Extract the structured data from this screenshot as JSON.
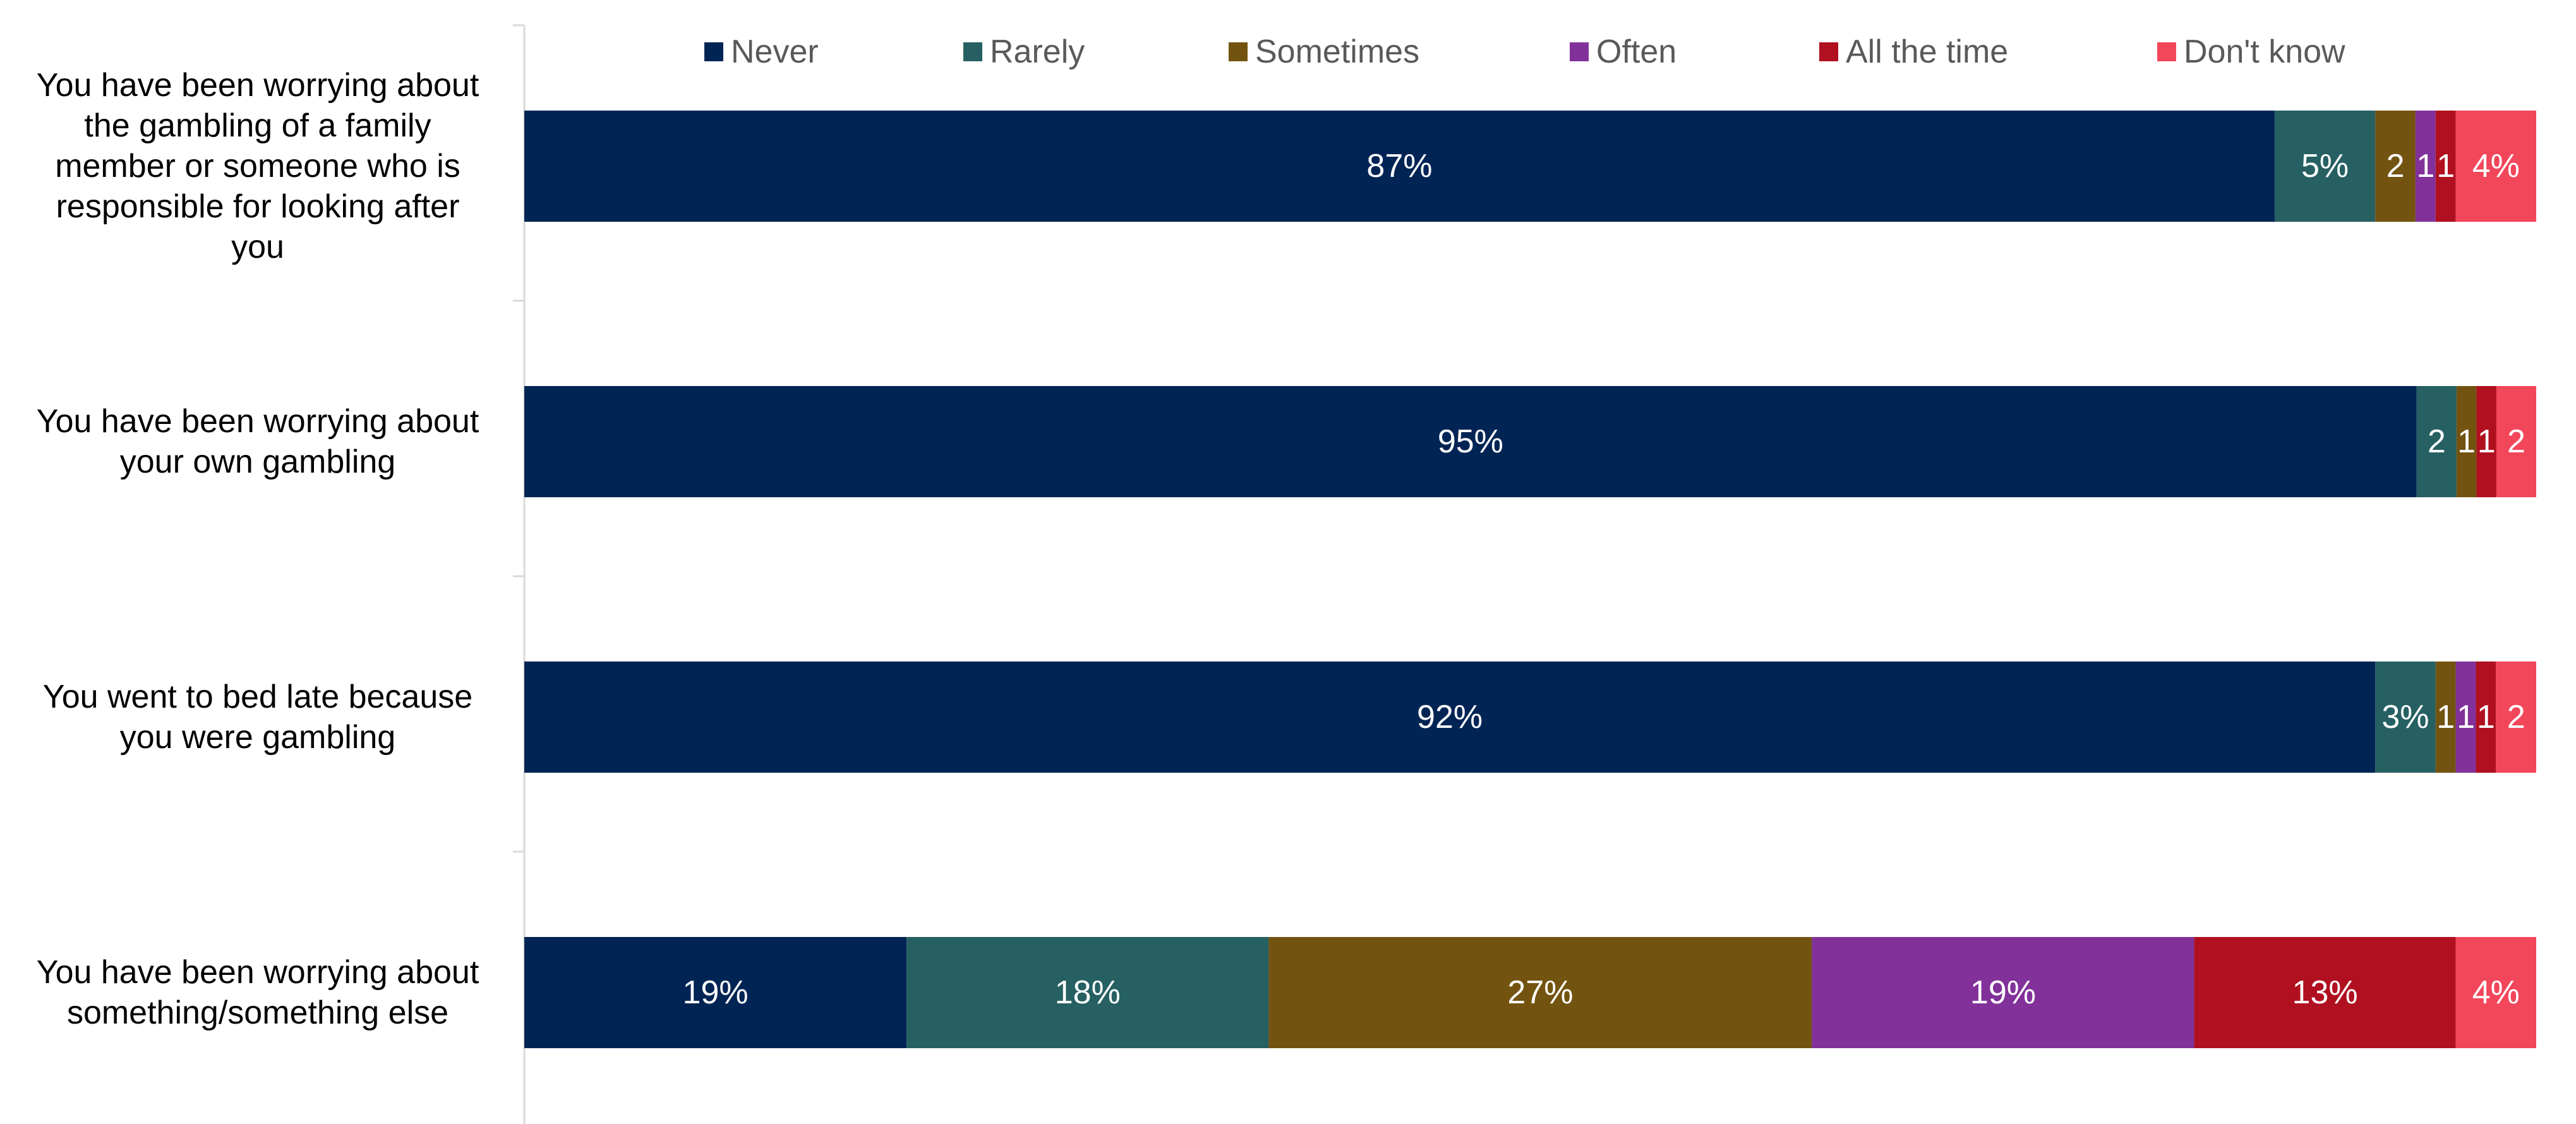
{
  "chart_data": {
    "type": "bar",
    "orientation": "horizontal",
    "stacked": true,
    "percent_stacked": true,
    "legend_position": "top",
    "grid": false,
    "categories": [
      "You have been worrying about the gambling of a family member or someone who is responsible for looking after you",
      "You have been worrying about your own gambling",
      "You went to bed late because you were gambling",
      "You have been worrying about something/something else"
    ],
    "category_lines": [
      [
        "You have been worrying about",
        "the gambling of a family",
        "member or someone who is",
        "responsible for looking after",
        "you"
      ],
      [
        "You have been worrying about",
        "your own gambling"
      ],
      [
        "You went to bed late because",
        "you were gambling"
      ],
      [
        "You have been worrying about",
        "something/something else"
      ]
    ],
    "series": [
      {
        "name": "Never",
        "color": "#002454",
        "values": [
          87,
          95,
          92,
          19
        ],
        "labels": [
          "87%",
          "95%",
          "92%",
          "19%"
        ]
      },
      {
        "name": "Rarely",
        "color": "#266062",
        "values": [
          5,
          2,
          3,
          18
        ],
        "labels": [
          "5%",
          "2",
          "3%",
          "18%"
        ]
      },
      {
        "name": "Sometimes",
        "color": "#735310",
        "values": [
          2,
          1,
          1,
          27
        ],
        "labels": [
          "2",
          "1",
          "1",
          "27%"
        ]
      },
      {
        "name": "Often",
        "color": "#82319a",
        "values": [
          1,
          0,
          1,
          19
        ],
        "labels": [
          "1",
          "",
          "1",
          "19%"
        ]
      },
      {
        "name": "All the time",
        "color": "#b0101f",
        "values": [
          1,
          1,
          1,
          13
        ],
        "labels": [
          "1",
          "1",
          "1",
          "13%"
        ]
      },
      {
        "name": "Don't know",
        "color": "#f2465b",
        "values": [
          4,
          2,
          2,
          4
        ],
        "labels": [
          "4%",
          "2",
          "2",
          "4%"
        ]
      }
    ]
  }
}
